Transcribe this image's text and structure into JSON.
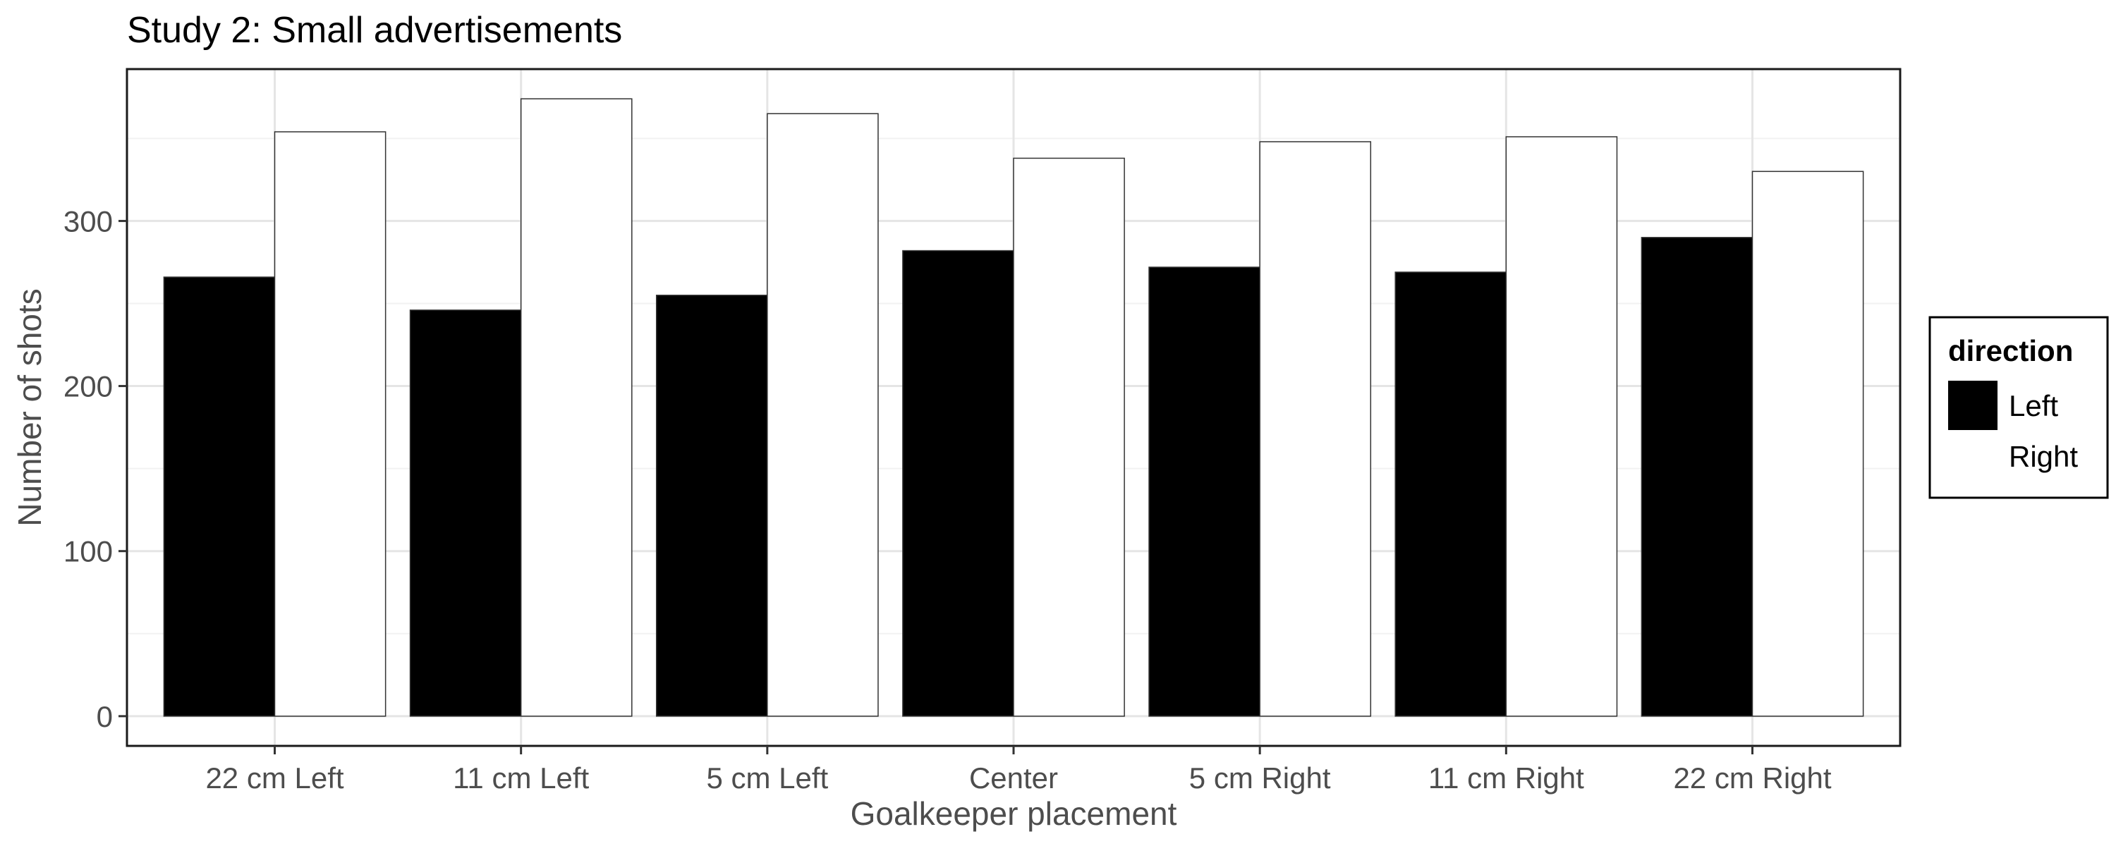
{
  "chart_data": {
    "type": "bar",
    "title": "Study 2: Small advertisements",
    "xlabel": "Goalkeeper placement",
    "ylabel": "Number of shots",
    "categories": [
      "22 cm Left",
      "11 cm Left",
      "5 cm Left",
      "Center",
      "5 cm Right",
      "11 cm Right",
      "22 cm Right"
    ],
    "series": [
      {
        "name": "Left",
        "color": "#000000",
        "values": [
          266,
          246,
          255,
          282,
          272,
          269,
          290
        ]
      },
      {
        "name": "Right",
        "color": "#ffffff",
        "values": [
          354,
          374,
          365,
          338,
          348,
          351,
          330
        ]
      }
    ],
    "ylim": [
      -18,
      392
    ],
    "yticks": [
      0,
      100,
      200,
      300
    ],
    "grid": true,
    "legend": {
      "title": "direction",
      "position": "right"
    }
  }
}
